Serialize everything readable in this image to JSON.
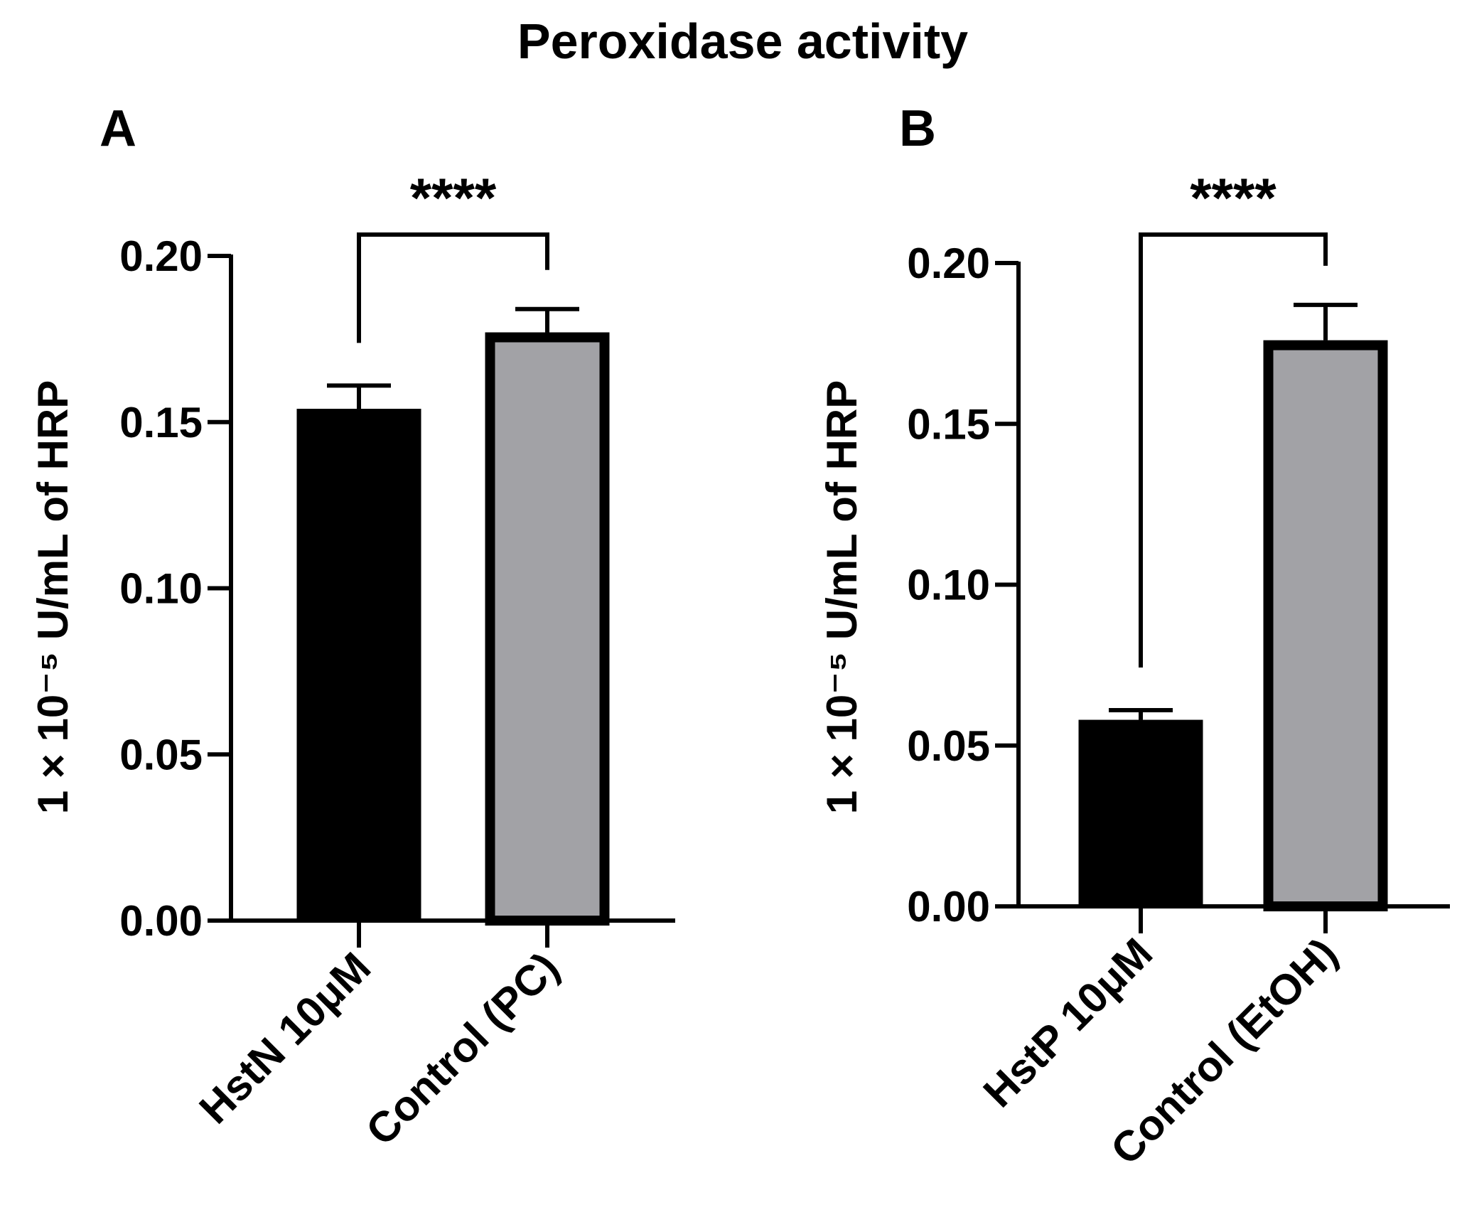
{
  "figure": {
    "title": "Peroxidase activity"
  },
  "colors": {
    "treatment": "#000000",
    "control": "#a2a2a6",
    "axis": "#000000"
  },
  "chart_data": [
    {
      "type": "bar",
      "panel": "A",
      "title": "",
      "xlabel": "",
      "ylabel": "1 × 10⁻⁵ U/mL of HRP",
      "ylim": [
        0,
        0.2
      ],
      "yticks": [
        "0.00",
        "0.05",
        "0.10",
        "0.15",
        "0.20"
      ],
      "categories": [
        "HstN 10μM",
        "Control (PC)"
      ],
      "values": [
        0.154,
        0.177
      ],
      "errors": [
        0.007,
        0.007
      ],
      "significance": "****",
      "grid": false
    },
    {
      "type": "bar",
      "panel": "B",
      "title": "",
      "xlabel": "",
      "ylabel": "1 × 10⁻⁵ U/mL of HRP",
      "ylim": [
        0,
        0.2
      ],
      "yticks": [
        "0.00",
        "0.05",
        "0.10",
        "0.15",
        "0.20"
      ],
      "categories": [
        "HstP 10μM",
        "Control (EtOH)"
      ],
      "values": [
        0.058,
        0.176
      ],
      "errors": [
        0.003,
        0.011
      ],
      "significance": "****",
      "grid": false
    }
  ]
}
